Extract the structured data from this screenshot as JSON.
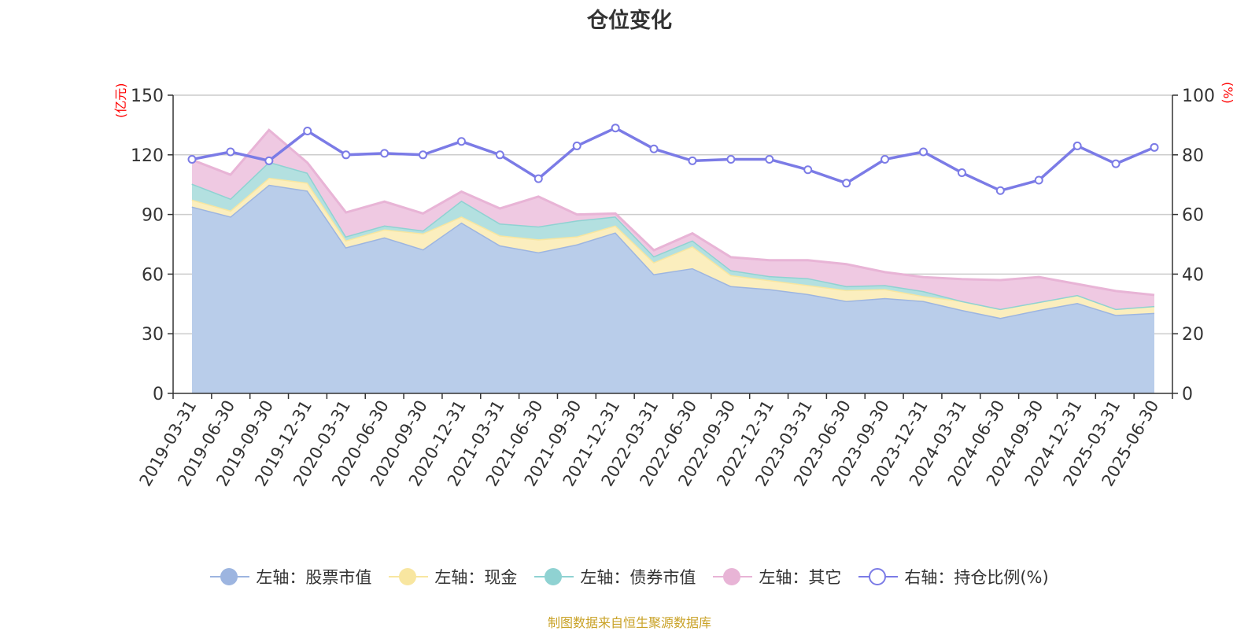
{
  "title": "仓位变化",
  "source_note": "制图数据来自恒生聚源数据库",
  "left_unit": "(亿元)",
  "right_unit": "(%)",
  "chart_data": {
    "type": "area",
    "title": "仓位变化",
    "x": [
      "2019-03-31",
      "2019-06-30",
      "2019-09-30",
      "2019-12-31",
      "2020-03-31",
      "2020-06-30",
      "2020-09-30",
      "2020-12-31",
      "2021-03-31",
      "2021-06-30",
      "2021-09-30",
      "2021-12-31",
      "2022-03-31",
      "2022-06-30",
      "2022-09-30",
      "2022-12-31",
      "2023-03-31",
      "2023-06-30",
      "2023-09-30",
      "2023-12-31",
      "2024-03-31",
      "2024-06-30",
      "2024-09-30",
      "2024-12-31",
      "2025-03-31",
      "2025-06-30"
    ],
    "y_left": {
      "min": 0,
      "max": 150,
      "ticks": [
        0,
        30,
        60,
        90,
        120,
        150
      ],
      "unit": "(亿元)"
    },
    "y_right": {
      "min": 0,
      "max": 100,
      "ticks": [
        0,
        20,
        40,
        60,
        80,
        100
      ],
      "unit": "(%)"
    },
    "grid": true,
    "legend_position": "bottom",
    "stacked": true,
    "series": [
      {
        "name": "左轴：股票市值",
        "axis": "left",
        "color": "#9db5e0",
        "fill": "#b9cdea",
        "values": [
          94,
          89,
          105,
          102,
          73.5,
          78.5,
          72.5,
          86,
          74.5,
          71,
          75,
          81,
          60,
          63,
          54,
          52.5,
          50,
          46.5,
          48,
          46.5,
          42,
          38,
          42,
          45.5,
          39.5,
          40.5
        ]
      },
      {
        "name": "左轴：现金",
        "axis": "left",
        "color": "#f8e6a0",
        "fill": "#fbeebe",
        "values": [
          3.5,
          3,
          3.5,
          4,
          3.5,
          4,
          8,
          3,
          5,
          6.5,
          4,
          3.5,
          6,
          11,
          5.5,
          4.5,
          4.5,
          5.5,
          4.5,
          2.5,
          4.5,
          4.5,
          4,
          4,
          3,
          3.5
        ]
      },
      {
        "name": "左轴：债券市值",
        "axis": "left",
        "color": "#8fd2d2",
        "fill": "#b3e0e0",
        "values": [
          8,
          6,
          8,
          5,
          2,
          2,
          1.5,
          8,
          6,
          6.5,
          8,
          4.5,
          3,
          3,
          2.5,
          2,
          3.5,
          2,
          2,
          2.5,
          0,
          0,
          0,
          0,
          0,
          0
        ]
      },
      {
        "name": "左轴：其它",
        "axis": "left",
        "color": "#e8b4d6",
        "fill": "#efc9e2",
        "values": [
          12,
          12,
          16,
          5,
          12,
          12,
          8.5,
          4.5,
          7.5,
          15,
          3,
          1.5,
          3,
          3.5,
          6.5,
          8,
          9,
          11,
          6.5,
          7,
          11,
          14.5,
          12.5,
          5.5,
          9,
          5.5
        ]
      },
      {
        "name": "右轴：持仓比例(%)",
        "axis": "right",
        "type": "line",
        "color": "#7b7be6",
        "values": [
          78.5,
          81,
          78,
          88,
          80,
          80.5,
          80,
          84.5,
          80,
          72,
          83,
          89,
          82,
          78,
          78.5,
          78.5,
          75,
          70.5,
          78.5,
          81,
          74,
          68,
          71.5,
          83,
          77,
          82.5
        ]
      }
    ]
  }
}
